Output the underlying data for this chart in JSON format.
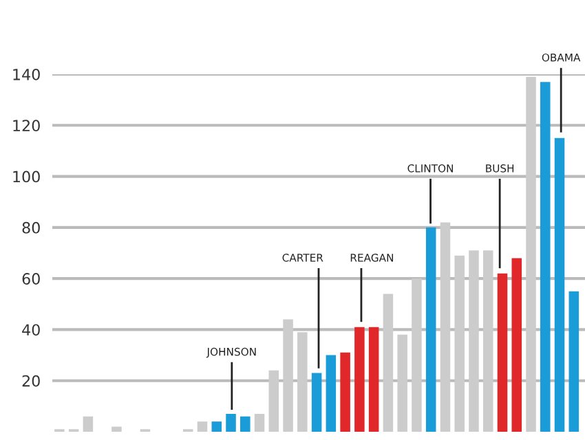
{
  "chart_data": {
    "type": "bar",
    "categories": [
      null,
      null,
      null,
      null,
      null,
      null,
      null,
      null,
      null,
      null,
      null,
      null,
      null,
      null,
      null,
      null,
      null,
      null,
      null,
      null,
      null,
      null,
      null,
      null,
      null,
      null,
      null,
      null,
      null,
      null,
      null,
      null,
      null,
      null,
      null,
      null,
      null
    ],
    "values": [
      1,
      1,
      6,
      0,
      2,
      0,
      1,
      0,
      0,
      1,
      4,
      4,
      7,
      6,
      7,
      24,
      44,
      39,
      23,
      30,
      31,
      41,
      41,
      54,
      38,
      60,
      80,
      82,
      69,
      71,
      71,
      62,
      68,
      139,
      137,
      115,
      55
    ],
    "colors": [
      "#cccccc",
      "#cccccc",
      "#cccccc",
      "#cccccc",
      "#cccccc",
      "#cccccc",
      "#cccccc",
      "#cccccc",
      "#cccccc",
      "#cccccc",
      "#cccccc",
      "#1a9cd8",
      "#1a9cd8",
      "#1a9cd8",
      "#cccccc",
      "#cccccc",
      "#cccccc",
      "#cccccc",
      "#1a9cd8",
      "#1a9cd8",
      "#e0282a",
      "#e0282a",
      "#e0282a",
      "#cccccc",
      "#cccccc",
      "#cccccc",
      "#1a9cd8",
      "#cccccc",
      "#cccccc",
      "#cccccc",
      "#cccccc",
      "#e0282a",
      "#e0282a",
      "#cccccc",
      "#1a9cd8",
      "#1a9cd8",
      "#1a9cd8"
    ],
    "ylim": [
      0,
      140
    ],
    "yticks": [
      20,
      40,
      60,
      80,
      100,
      120,
      140
    ],
    "grid": "y",
    "annotations": [
      "JOHNSON",
      "CARTER",
      "REAGAN",
      "CLINTON",
      "BUSH",
      "OBAMA"
    ]
  }
}
